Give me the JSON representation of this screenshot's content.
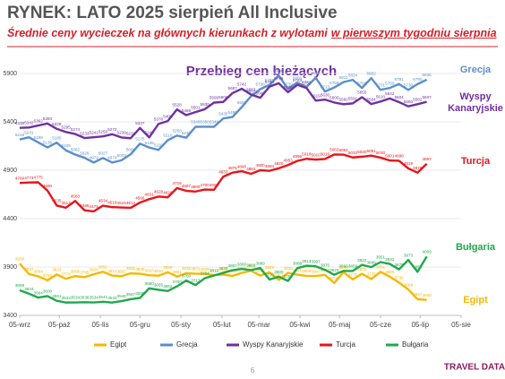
{
  "chart_data": {
    "type": "line",
    "title": "RYNEK: LATO 2025 sierpień All Inclusive",
    "subtitle": "Średnie ceny wycieczek na głównych kierunkach z wylotami",
    "subtitle_emphasis": "w pierwszym tygodniu sierpnia",
    "chart_title": "Przebieg cen bieżących",
    "page_number": "6",
    "logo": "TRAVEL DATA",
    "x": [
      0,
      7,
      14,
      21,
      28,
      35,
      42,
      49,
      56,
      63,
      70,
      77,
      84,
      91,
      98,
      105,
      112,
      119,
      126,
      133,
      140,
      147,
      154,
      161,
      168,
      175,
      182,
      189,
      196,
      203,
      210,
      217,
      224,
      231,
      238,
      245,
      252,
      259,
      266,
      273,
      280,
      287,
      294,
      301,
      308
    ],
    "xlim": [
      0,
      334
    ],
    "xticks": [
      {
        "value": 0,
        "label": "05-wrz"
      },
      {
        "value": 30,
        "label": "05-paź"
      },
      {
        "value": 61,
        "label": "05-lis"
      },
      {
        "value": 91,
        "label": "05-gru"
      },
      {
        "value": 122,
        "label": "05-sty"
      },
      {
        "value": 153,
        "label": "05-lut"
      },
      {
        "value": 181,
        "label": "05-mar"
      },
      {
        "value": 212,
        "label": "05-kwi"
      },
      {
        "value": 242,
        "label": "05-maj"
      },
      {
        "value": 273,
        "label": "05-cze"
      },
      {
        "value": 303,
        "label": "05-lip"
      },
      {
        "value": 334,
        "label": "05-sie"
      }
    ],
    "ylim": [
      3400,
      5900
    ],
    "yticks": [
      3400,
      3900,
      4400,
      4900,
      5400,
      5900
    ],
    "grid": true,
    "legend": "bottom",
    "series": [
      {
        "name": "Egipt",
        "color": "#f5b800",
        "values": [
          3936,
          3827,
          3804,
          3763,
          3823,
          3778,
          3806,
          3795,
          3825,
          3851,
          3811,
          3805,
          3835,
          3830,
          3815,
          3810,
          3846,
          3801,
          3836,
          3831,
          3829,
          3816,
          3822,
          3808,
          3839,
          3862,
          3812,
          3845,
          3767,
          3839,
          3821,
          3808,
          3807,
          3818,
          3735,
          3846,
          3772,
          3830,
          3775,
          3851,
          3800,
          3739,
          3668,
          3567,
          3560
        ]
      },
      {
        "name": "Grecja",
        "color": "#5b8fc9",
        "values": [
          5218,
          5241,
          5188,
          5136,
          5185,
          5105,
          5062,
          5029,
          4979,
          5027,
          4979,
          5003,
          5065,
          5175,
          5135,
          5110,
          5210,
          5258,
          5236,
          5349,
          5350,
          5349,
          5435,
          5450,
          5552,
          5665,
          5738,
          5782,
          5880,
          5739,
          5806,
          5761,
          5856,
          5713,
          5755,
          5811,
          5834,
          5750,
          5852,
          5731,
          5750,
          5791,
          5730,
          5790,
          5836
        ]
      },
      {
        "name": "Wyspy Kanaryjskie",
        "color": "#7030a0",
        "values": [
          5338,
          5342,
          5362,
          5383,
          5328,
          5295,
          5274,
          5233,
          5241,
          5250,
          5272,
          5239,
          5231,
          5337,
          5240,
          5378,
          5408,
          5528,
          5469,
          5501,
          5530,
          5599,
          5606,
          5697,
          5742,
          5683,
          5649,
          5764,
          5799,
          5706,
          5783,
          5750,
          5619,
          5630,
          5600,
          5582,
          5591,
          5655,
          5584,
          5610,
          5642,
          5604,
          5560,
          5582,
          5607
        ]
      },
      {
        "name": "Turcja",
        "color": "#e8141b",
        "values": [
          4769,
          4773,
          4775,
          4690,
          4535,
          4513,
          4583,
          4486,
          4475,
          4534,
          4519,
          4515,
          4512,
          4566,
          4601,
          4628,
          4620,
          4716,
          4687,
          4680,
          4700,
          4698,
          4833,
          4875,
          4890,
          4863,
          4900,
          4894,
          4920,
          4953,
          4996,
          5018,
          5010,
          5016,
          5062,
          5061,
          5032,
          5040,
          5051,
          5030,
          5001,
          4998,
          4919,
          4875,
          4967
        ]
      },
      {
        "name": "Bułgaria",
        "color": "#1fa84a",
        "values": [
          3659,
          3624,
          3584,
          3600,
          3551,
          3533,
          3534,
          3536,
          3534,
          3541,
          3533,
          3548,
          3567,
          3580,
          3680,
          3665,
          3652,
          3700,
          3760,
          3713,
          3784,
          3812,
          3839,
          3867,
          3880,
          3868,
          3889,
          3770,
          3800,
          3756,
          3888,
          3913,
          3907,
          3870,
          3820,
          3860,
          3859,
          3922,
          3899,
          3951,
          3932,
          3875,
          3973,
          3850,
          4009
        ]
      }
    ]
  }
}
